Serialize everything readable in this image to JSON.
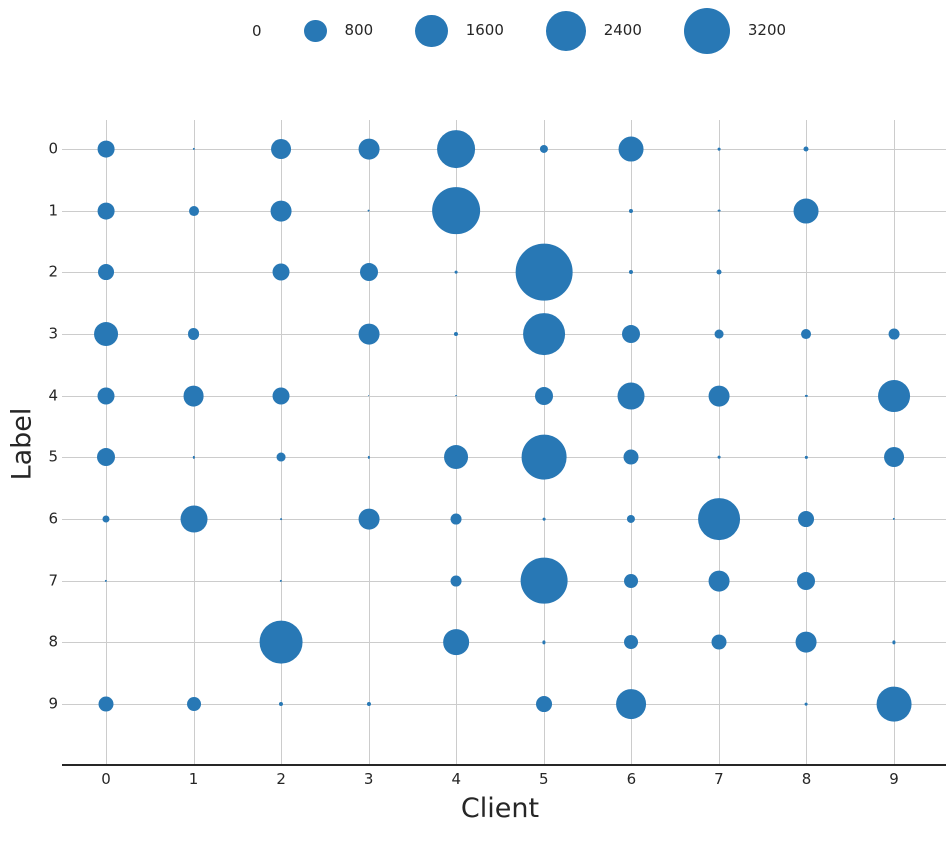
{
  "chart_data": {
    "type": "scatter",
    "subtype": "bubble-grid",
    "title": "",
    "xlabel": "Client",
    "ylabel": "Label",
    "x_ticks": [
      "0",
      "1",
      "2",
      "3",
      "4",
      "5",
      "6",
      "7",
      "8",
      "9"
    ],
    "y_ticks": [
      "0",
      "1",
      "2",
      "3",
      "4",
      "5",
      "6",
      "7",
      "8",
      "9"
    ],
    "x": [
      0,
      1,
      2,
      3,
      4,
      5,
      6,
      7,
      8,
      9
    ],
    "grid": "on",
    "legend": {
      "position": "top",
      "entries": [
        {
          "label": "0",
          "value": 0
        },
        {
          "label": "800",
          "value": 800
        },
        {
          "label": "1600",
          "value": 1600
        },
        {
          "label": "2400",
          "value": 2400
        },
        {
          "label": "3200",
          "value": 3200
        }
      ]
    },
    "size_encoding": "bubble area proportional to sample count",
    "series": [
      {
        "label": "0",
        "values": [
          430,
          8,
          600,
          660,
          2170,
          100,
          940,
          12,
          38,
          0
        ]
      },
      {
        "label": "1",
        "values": [
          430,
          150,
          660,
          12,
          3450,
          0,
          25,
          12,
          940,
          0
        ]
      },
      {
        "label": "2",
        "values": [
          385,
          0,
          435,
          490,
          12,
          4870,
          25,
          38,
          0,
          0
        ]
      },
      {
        "label": "3",
        "values": [
          865,
          215,
          0,
          660,
          25,
          2650,
          490,
          120,
          150,
          180
        ]
      },
      {
        "label": "4",
        "values": [
          435,
          660,
          435,
          5,
          5,
          490,
          1100,
          660,
          8,
          1540
        ]
      },
      {
        "label": "5",
        "values": [
          490,
          8,
          120,
          8,
          865,
          3040,
          340,
          12,
          8,
          600
        ]
      },
      {
        "label": "6",
        "values": [
          75,
          1100,
          5,
          660,
          180,
          12,
          100,
          2650,
          385,
          8
        ]
      },
      {
        "label": "7",
        "values": [
          8,
          0,
          8,
          0,
          180,
          3310,
          295,
          660,
          490,
          0
        ]
      },
      {
        "label": "8",
        "values": [
          0,
          0,
          2780,
          0,
          1000,
          15,
          295,
          340,
          660,
          15
        ]
      },
      {
        "label": "9",
        "values": [
          340,
          295,
          25,
          25,
          0,
          385,
          1350,
          0,
          12,
          1840
        ]
      }
    ]
  },
  "colors": {
    "bubble": "#2878b5",
    "grid": "#cccccc",
    "axis": "#262626",
    "text": "#262626",
    "background": "#ffffff"
  }
}
